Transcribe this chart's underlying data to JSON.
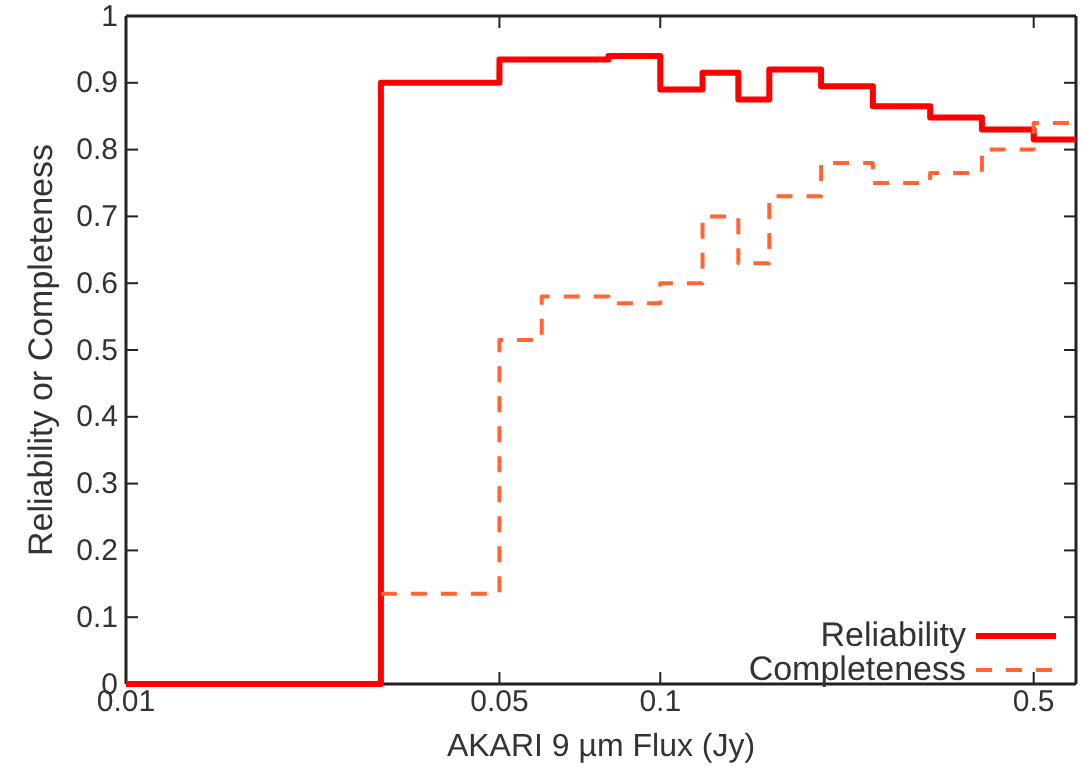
{
  "chart_data": {
    "type": "step",
    "xlabel": "AKARI 9 µm Flux (Jy)",
    "ylabel": "Reliability or Completeness",
    "log": "x",
    "xlim": [
      0.01,
      0.6
    ],
    "xticks": [
      0.01,
      0.05,
      0.1,
      0.5
    ],
    "ylim": [
      0,
      1
    ],
    "yticks": [
      0,
      0.1,
      0.2,
      0.3,
      0.4,
      0.5,
      0.6,
      0.7,
      0.8,
      0.9,
      1
    ],
    "x": [
      0.01,
      0.03,
      0.05,
      0.06,
      0.08,
      0.1,
      0.12,
      0.14,
      0.16,
      0.2,
      0.25,
      0.32,
      0.4,
      0.5,
      0.6
    ],
    "series": [
      {
        "name": "Reliability",
        "color": "#ff0000",
        "line_style": "solid",
        "values": [
          0,
          0.9,
          0.935,
          0.935,
          0.94,
          0.89,
          0.915,
          0.875,
          0.92,
          0.895,
          0.865,
          0.848,
          0.83,
          0.815,
          0.815
        ]
      },
      {
        "name": "Completeness",
        "color": "#ff6633",
        "line_style": "dashed",
        "values": [
          null,
          0.135,
          0.515,
          0.58,
          0.57,
          0.6,
          0.7,
          0.63,
          0.73,
          0.78,
          0.75,
          0.765,
          0.8,
          0.84,
          0.84
        ]
      }
    ],
    "grid": false,
    "legend": "bottom right"
  }
}
